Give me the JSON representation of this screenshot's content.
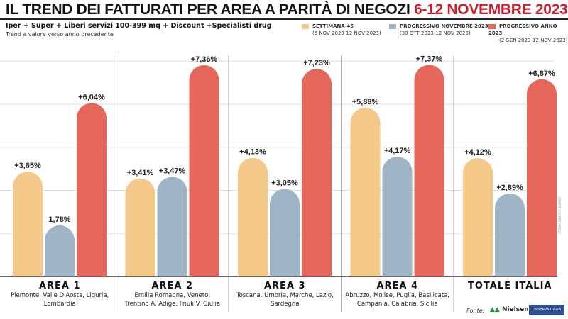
{
  "title": {
    "main": "IL TREND DEI FATTURATI PER AREA A PARITÀ DI NEGOZI",
    "highlight": "6-12 NOVEMBRE 2023"
  },
  "subtitle": "Iper + Super + Liberi servizi 100-399 mq + Discount +Specialisti drug",
  "subtitle2": "Trend a valore verso anno precedente",
  "source_label": "Fonte:",
  "source_logo": "NielsenIQ",
  "source_logo2": "OSSERVA ITALIA",
  "credit": "STUDIO GRAFICO BLUMED",
  "chart_data": {
    "type": "bar",
    "title": "IL TREND DEI FATTURATI PER AREA A PARITÀ DI NEGOZI 6-12 NOVEMBRE 2023",
    "ylim": [
      0,
      8
    ],
    "grid": true,
    "legend_position": "top-right",
    "categories": [
      {
        "name": "AREA 1",
        "desc": [
          "Piemonte, Valle D'Aosta, Liguria,",
          "Lombardia"
        ]
      },
      {
        "name": "AREA 2",
        "desc": [
          "Emilia Romagna, Veneto,",
          "Trentino A. Adige, Friuli V. Giulia"
        ]
      },
      {
        "name": "AREA 3",
        "desc": [
          "Toscana, Umbria, Marche, Lazio,",
          "Sardegna"
        ]
      },
      {
        "name": "AREA 4",
        "desc": [
          "Abruzzo, Molise, Puglia, Basilicata,",
          "Campania, Calabria, Sicilia"
        ]
      },
      {
        "name": "TOTALE ITALIA",
        "desc": []
      }
    ],
    "series": [
      {
        "name": "SETTIMANA 45",
        "period": "(6 NOV 2023-12 NOV 2023)",
        "color": "#f5c98a",
        "values": [
          3.65,
          3.41,
          4.13,
          5.88,
          4.12
        ],
        "labels": [
          "+3,65%",
          "+3,41%",
          "+4,13%",
          "+5,88%",
          "+4,12%"
        ]
      },
      {
        "name": "PROGRESSIVO NOVEMBRE 2023",
        "period": "(30 OTT 2023-12 NOV 2023)",
        "color": "#9fb4c4",
        "values": [
          1.78,
          3.47,
          3.05,
          4.17,
          2.89
        ],
        "labels": [
          "1,78%",
          "+3,47%",
          "+3,05%",
          "+4,17%",
          "+2,89%"
        ]
      },
      {
        "name": "PROGRESSIVO ANNO 2023",
        "period": "(2 GEN 2023-12 NOV 2023)",
        "color": "#e4675a",
        "values": [
          6.04,
          7.36,
          7.23,
          7.37,
          6.87
        ],
        "labels": [
          "+6,04%",
          "+7,36%",
          "+7,23%",
          "+7,37%",
          "+6,87%"
        ]
      }
    ]
  }
}
